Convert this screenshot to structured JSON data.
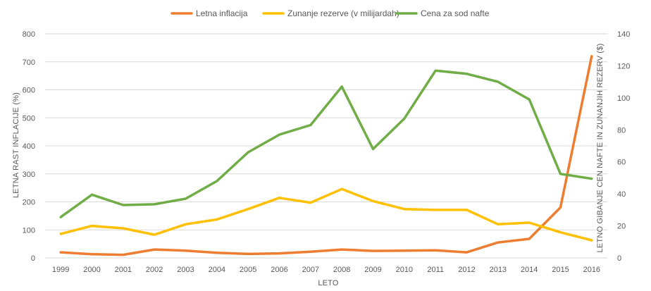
{
  "chart_data": {
    "type": "line",
    "title": "",
    "categories": [
      "1999",
      "2000",
      "2001",
      "2002",
      "2003",
      "2004",
      "2005",
      "2006",
      "2007",
      "2008",
      "2009",
      "2010",
      "2011",
      "2012",
      "2013",
      "2014",
      "2015",
      "2016"
    ],
    "xlabel": "LETO",
    "ylabel_left": "LETNA RAST INFLACIJE (%)",
    "ylabel_right": "LETNO GIBANJE CEN NAFTE IN ZUNANJIH REZERV ($)",
    "ylim_left": [
      0,
      800
    ],
    "yticks_left": [
      0,
      100,
      200,
      300,
      400,
      500,
      600,
      700,
      800
    ],
    "ylim_right": [
      0,
      140
    ],
    "yticks_right": [
      0,
      20,
      40,
      60,
      80,
      100,
      120,
      140
    ],
    "legend_position": "top-center",
    "grid": true,
    "series": [
      {
        "name": "Letna inflacija",
        "axis": "left",
        "color": "#ED7D31",
        "values": [
          20,
          13,
          11,
          30,
          26,
          18,
          14,
          16,
          22,
          30,
          25,
          26,
          27,
          20,
          55,
          68,
          180,
          720
        ]
      },
      {
        "name": "Zunanje rezerve (v milijardah)",
        "axis": "right",
        "color": "#FFC000",
        "values": [
          15,
          20,
          18.5,
          14.5,
          21,
          24,
          30.5,
          37.5,
          34.5,
          43,
          35.5,
          30.5,
          30,
          30,
          21,
          22,
          16,
          11
        ]
      },
      {
        "name": "Cena za sod nafte",
        "axis": "right",
        "color": "#70AD47",
        "values": [
          25.5,
          39.5,
          33,
          33.5,
          37,
          48,
          66,
          77,
          83,
          107,
          68,
          87,
          117,
          115,
          110,
          99,
          52.5,
          49.5
        ]
      }
    ]
  }
}
